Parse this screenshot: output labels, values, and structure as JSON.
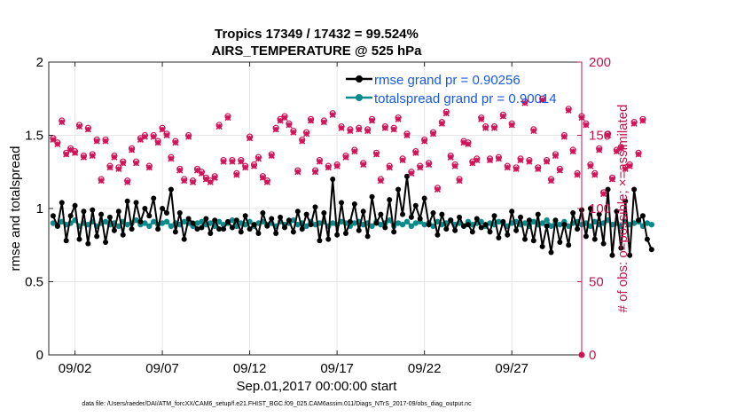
{
  "chart_data": {
    "type": "line",
    "title": "Tropics 17349 / 17432 = 99.524%",
    "subtitle": "AIRS_TEMPERATURE @ 525 hPa",
    "xlabel": "Sep.01,2017 00:00:00 start",
    "ylabel": "rmse and totalspread",
    "ylabel_right": "# of obs: o=possible; ×=assimilated",
    "xlim": [
      0.5,
      31.0
    ],
    "ylim": [
      0,
      2
    ],
    "ylim_right": [
      0,
      200
    ],
    "x_tick_values": [
      2,
      7,
      12,
      17,
      22,
      27
    ],
    "x_tick_labels": [
      "09/02",
      "09/07",
      "09/12",
      "09/17",
      "09/22",
      "09/27"
    ],
    "y_ticks": [
      "0",
      "0.5",
      "1",
      "1.5",
      "2"
    ],
    "y_ticks_right": [
      "0",
      "50",
      "100",
      "150",
      "200"
    ],
    "grid": true,
    "legend_position": "top-right",
    "colors": {
      "rmse": "#000000",
      "spread": "#0a8a8a",
      "obs": "#d0145a",
      "legend_text": "#1a5ae0",
      "right_axis": "#c4144c"
    },
    "series": [
      {
        "name": "rmse grand pr = 0.90256",
        "role": "rmse",
        "axis": "left",
        "values": [
          0.95,
          0.88,
          1.04,
          0.78,
          0.95,
          1.02,
          0.79,
          0.98,
          0.76,
          0.99,
          0.81,
          0.96,
          0.77,
          0.94,
          0.85,
          0.98,
          0.82,
          1.05,
          0.86,
          1.04,
          0.91,
          1.0,
          0.95,
          1.07,
          0.86,
          1.0,
          0.97,
          1.13,
          0.84,
          0.97,
          0.79,
          0.93,
          0.9,
          0.86,
          0.87,
          0.93,
          0.83,
          0.92,
          0.86,
          0.86,
          0.91,
          0.87,
          0.92,
          0.84,
          0.95,
          0.86,
          0.89,
          0.83,
          0.97,
          0.88,
          0.93,
          0.83,
          0.94,
          0.87,
          0.92,
          0.84,
          0.98,
          0.86,
          0.96,
          0.89,
          1.01,
          0.78,
          0.97,
          0.79,
          1.2,
          0.82,
          1.04,
          0.83,
          0.91,
          1.03,
          0.85,
          0.98,
          0.81,
          1.08,
          0.9,
          0.96,
          0.87,
          1.06,
          0.84,
          1.13,
          0.96,
          1.22,
          0.94,
          1.02,
          0.93,
          1.07,
          0.89,
          0.97,
          0.82,
          0.96,
          0.86,
          0.92,
          0.85,
          0.94,
          0.88,
          0.89,
          0.84,
          0.93,
          0.87,
          0.89,
          0.84,
          0.95,
          0.8,
          0.91,
          0.82,
          0.98,
          0.85,
          0.94,
          0.79,
          0.92,
          0.78,
          0.96,
          0.74,
          0.88,
          0.7,
          0.92,
          0.77,
          0.89,
          0.75,
          0.97,
          0.86,
          0.99,
          0.81,
          1.0,
          0.79,
          0.96,
          0.76,
          1.13,
          0.68,
          0.98,
          0.73,
          1.05,
          0.68,
          1.13,
          0.92,
          0.95,
          0.79,
          0.72
        ]
      },
      {
        "name": "totalspread grand pr = 0.90014",
        "role": "spread",
        "axis": "left",
        "values": [
          0.9,
          0.88,
          0.91,
          0.89,
          0.9,
          0.92,
          0.88,
          0.9,
          0.89,
          0.91,
          0.88,
          0.9,
          0.91,
          0.89,
          0.9,
          0.88,
          0.91,
          0.89,
          0.9,
          0.92,
          0.89,
          0.9,
          0.88,
          0.91,
          0.89,
          0.9,
          0.91,
          0.88,
          0.9,
          0.89,
          0.91,
          0.9,
          0.88,
          0.9,
          0.91,
          0.89,
          0.9,
          0.88,
          0.91,
          0.89,
          0.9,
          0.92,
          0.88,
          0.9,
          0.89,
          0.91,
          0.88,
          0.9,
          0.91,
          0.89,
          0.9,
          0.88,
          0.91,
          0.89,
          0.9,
          0.92,
          0.89,
          0.9,
          0.88,
          0.91,
          0.89,
          0.9,
          0.91,
          0.88,
          0.9,
          0.89,
          0.91,
          0.9,
          0.88,
          0.9,
          0.91,
          0.89,
          0.9,
          0.88,
          0.91,
          0.89,
          0.9,
          0.92,
          0.88,
          0.9,
          0.89,
          0.91,
          0.88,
          0.9,
          0.91,
          0.89,
          0.9,
          0.88,
          0.91,
          0.89,
          0.9,
          0.92,
          0.89,
          0.9,
          0.88,
          0.91,
          0.89,
          0.9,
          0.91,
          0.88,
          0.9,
          0.89,
          0.91,
          0.9,
          0.88,
          0.9,
          0.91,
          0.89,
          0.9,
          0.88,
          0.91,
          0.89,
          0.9,
          0.92,
          0.88,
          0.9,
          0.89,
          0.91,
          0.88,
          0.9,
          0.91,
          0.89,
          0.9,
          0.88,
          0.91,
          0.89,
          0.9,
          0.92,
          0.89,
          0.9,
          0.88,
          0.91,
          0.89,
          0.9,
          0.91,
          0.88,
          0.9,
          0.89
        ]
      },
      {
        "name": "# of obs possible",
        "role": "obs_possible",
        "axis": "right",
        "values": [
          148,
          145,
          160,
          138,
          141,
          139,
          157,
          136,
          155,
          137,
          147,
          120,
          147,
          129,
          136,
          128,
          132,
          119,
          141,
          132,
          148,
          150,
          129,
          150,
          146,
          155,
          151,
          135,
          146,
          127,
          120,
          150,
          119,
          127,
          125,
          121,
          119,
          122,
          157,
          133,
          163,
          133,
          124,
          133,
          129,
          149,
          130,
          135,
          122,
          119,
          137,
          155,
          161,
          163,
          158,
          153,
          126,
          147,
          152,
          161,
          126,
          133,
          160,
          129,
          165,
          130,
          156,
          136,
          154,
          140,
          155,
          131,
          154,
          161,
          138,
          120,
          156,
          129,
          155,
          162,
          134,
          151,
          125,
          139,
          129,
          147,
          131,
          152,
          114,
          159,
          166,
          136,
          130,
          120,
          146,
          145,
          132,
          134,
          162,
          156,
          134,
          156,
          135,
          164,
          129,
          158,
          128,
          134,
          173,
          133,
          154,
          128,
          175,
          133,
          120,
          137,
          127,
          150,
          168,
          140,
          124,
          163,
          158,
          130,
          124,
          141,
          111,
          151,
          121,
          140,
          142,
          128,
          130,
          159,
          138,
          161
        ]
      },
      {
        "name": "# of obs assimilated",
        "role": "obs_assimilated",
        "axis": "right",
        "values": [
          147,
          144,
          159,
          137,
          140,
          138,
          156,
          135,
          154,
          136,
          146,
          119,
          146,
          128,
          135,
          127,
          131,
          118,
          140,
          131,
          147,
          149,
          128,
          149,
          145,
          154,
          150,
          134,
          145,
          126,
          119,
          149,
          118,
          126,
          124,
          120,
          118,
          121,
          156,
          132,
          162,
          132,
          123,
          132,
          128,
          148,
          129,
          134,
          121,
          118,
          136,
          154,
          160,
          162,
          157,
          152,
          125,
          146,
          151,
          160,
          125,
          132,
          159,
          128,
          164,
          129,
          155,
          135,
          153,
          139,
          154,
          130,
          153,
          160,
          137,
          119,
          155,
          128,
          154,
          161,
          133,
          150,
          124,
          138,
          128,
          146,
          130,
          151,
          113,
          158,
          165,
          135,
          129,
          119,
          145,
          144,
          131,
          133,
          161,
          155,
          133,
          155,
          134,
          163,
          128,
          157,
          127,
          133,
          172,
          132,
          153,
          127,
          174,
          132,
          119,
          136,
          126,
          149,
          167,
          139,
          123,
          162,
          157,
          129,
          123,
          140,
          110,
          150,
          120,
          139,
          141,
          127,
          129,
          158,
          137,
          160
        ]
      }
    ]
  },
  "footer": "data file: /Users/raeder/DAI/ATM_forcXX/CAM6_setup/f.e21.FHIST_BGC.f09_025.CAM6assim.011/Diags_NTrS_2017-09/obs_diag_output.nc"
}
